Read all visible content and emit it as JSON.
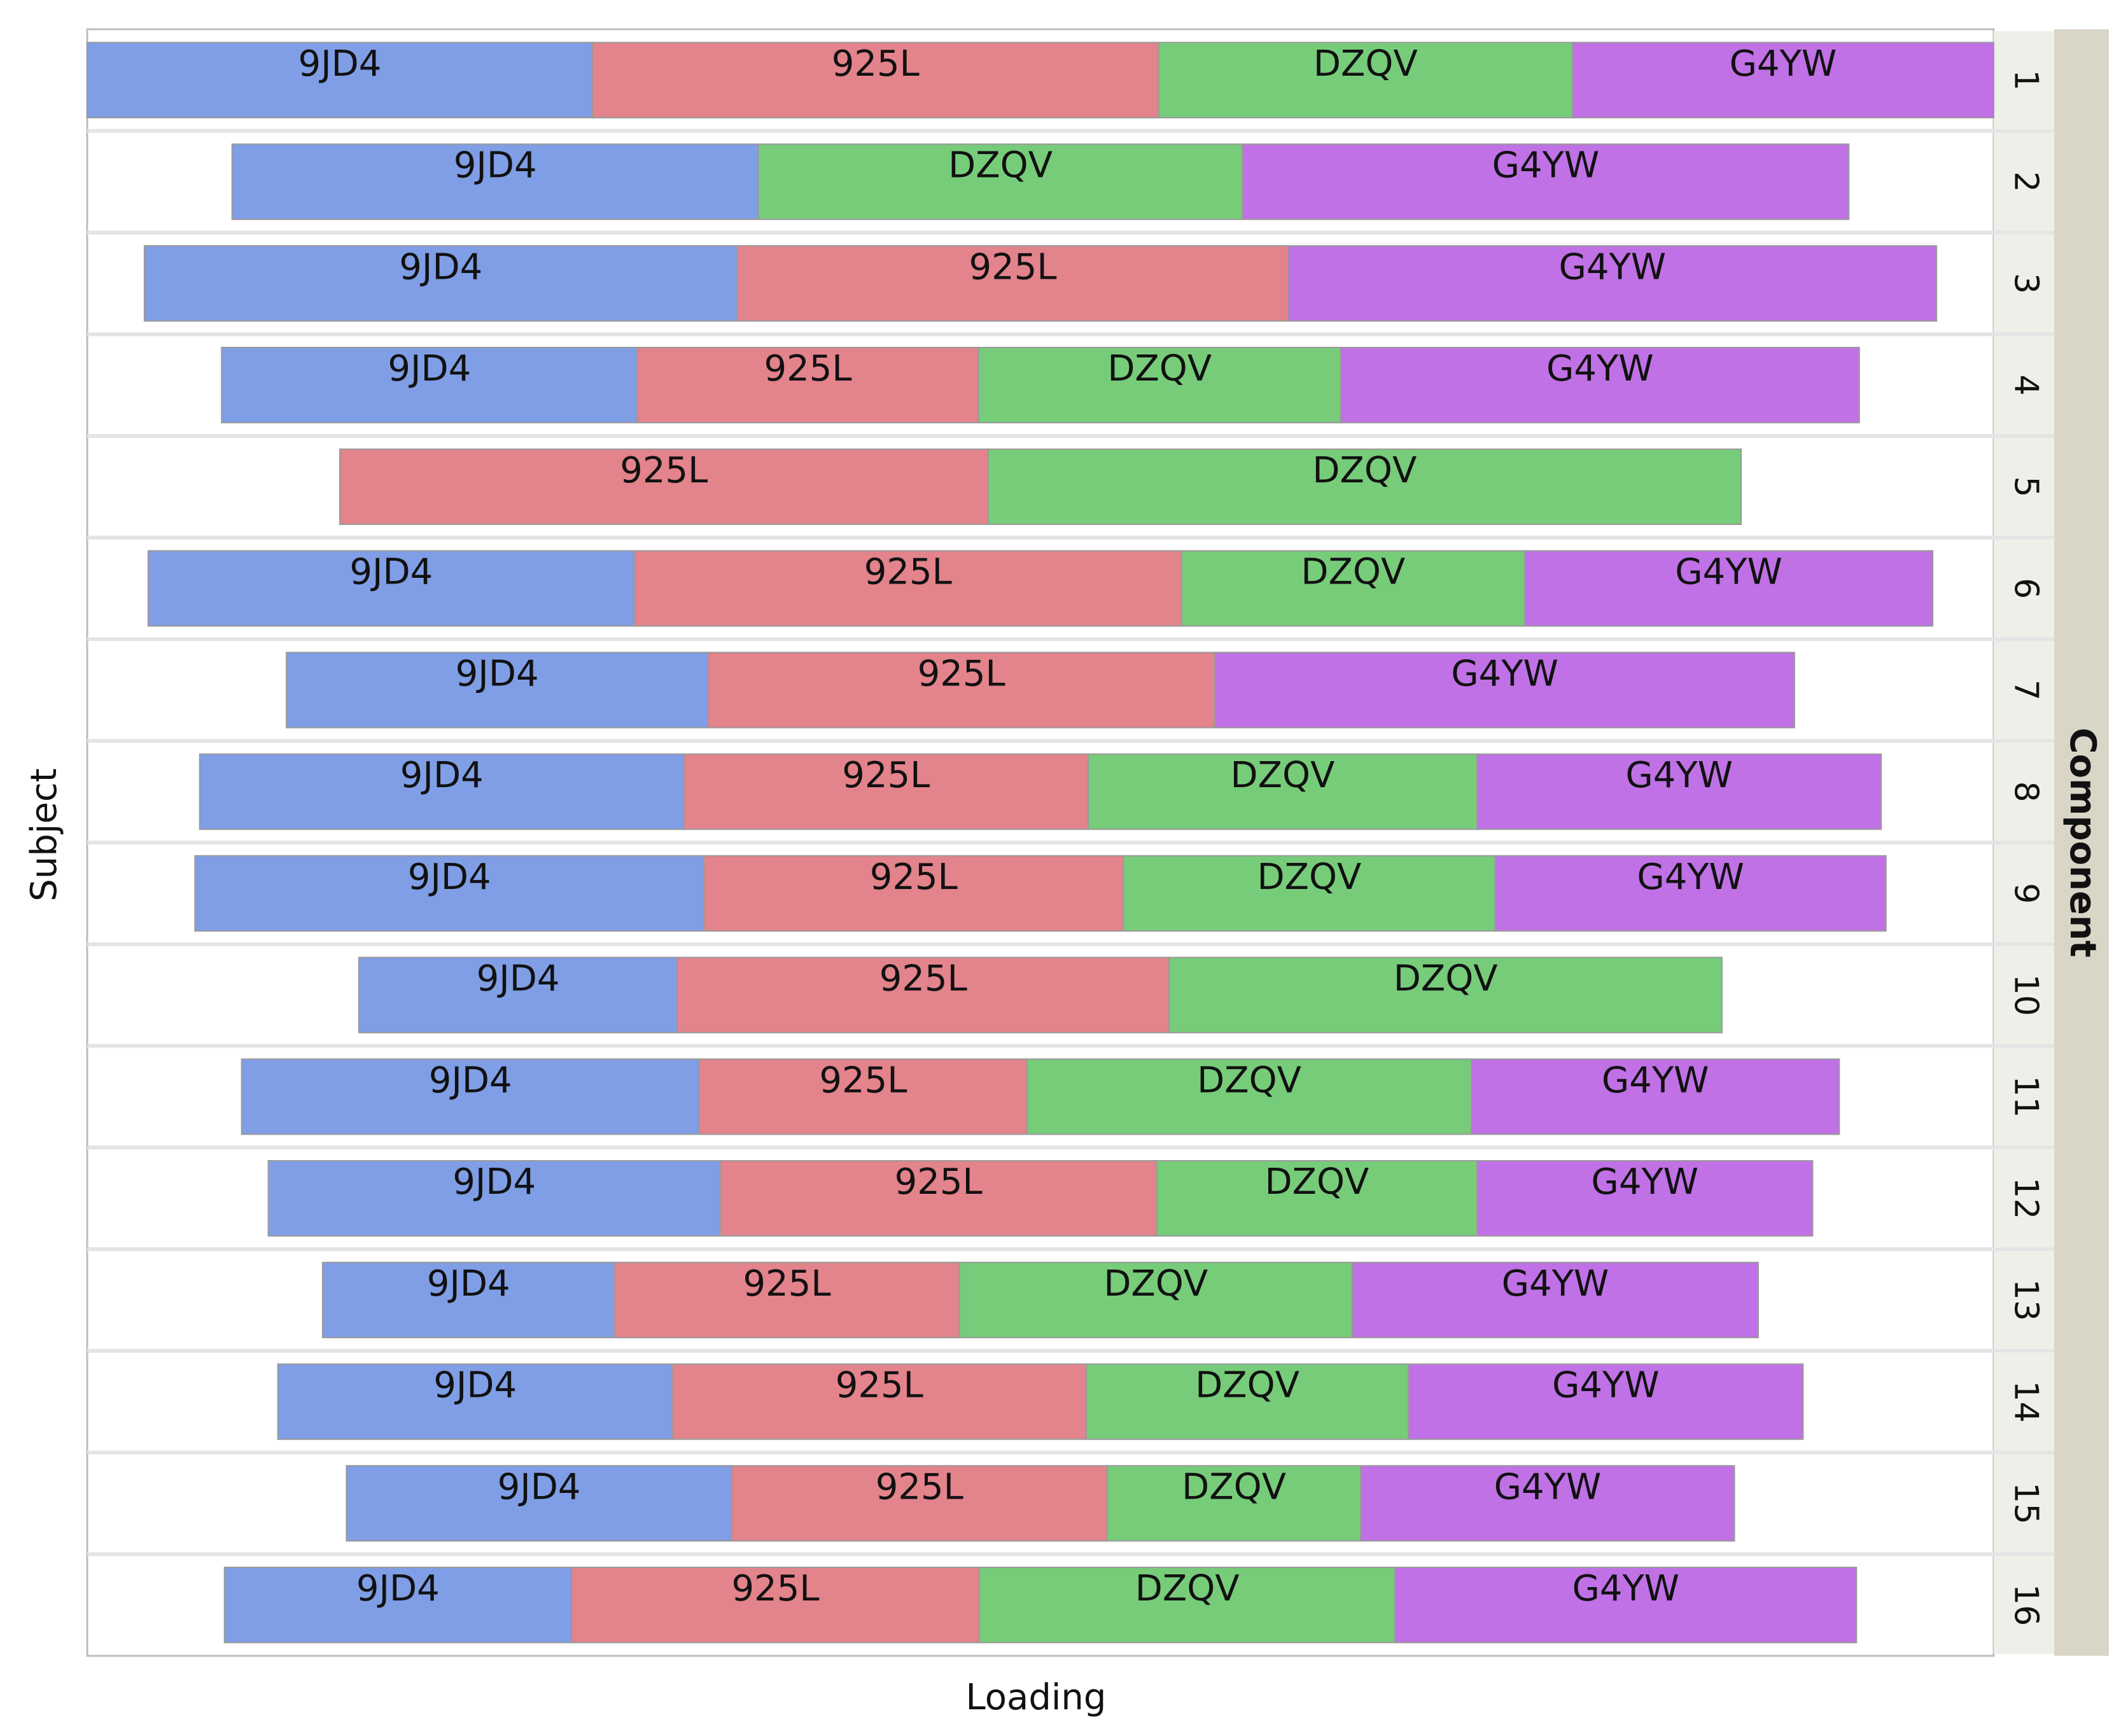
{
  "chart_data": {
    "type": "bar",
    "orientation": "horizontal",
    "stacked": true,
    "centered": true,
    "xlabel": "Loading",
    "ylabel": "Subject",
    "facet_label": "Component",
    "segment_order": [
      "9JD4",
      "925L",
      "DZQV",
      "G4YW"
    ],
    "colors": {
      "9JD4": "#7f9ee6",
      "925L": "#e3838b",
      "DZQV": "#77cc7a",
      "G4YW": "#c071e6"
    },
    "grid": false,
    "legend": "none",
    "rows": [
      {
        "id": "1",
        "values": {
          "9JD4": 0.265,
          "925L": 0.297,
          "DZQV": 0.217,
          "G4YW": 0.221
        }
      },
      {
        "id": "2",
        "values": {
          "9JD4": 0.276,
          "DZQV": 0.254,
          "G4YW": 0.318
        }
      },
      {
        "id": "3",
        "values": {
          "9JD4": 0.311,
          "925L": 0.289,
          "G4YW": 0.34
        }
      },
      {
        "id": "4",
        "values": {
          "9JD4": 0.218,
          "925L": 0.179,
          "DZQV": 0.19,
          "G4YW": 0.272
        }
      },
      {
        "id": "5",
        "values": {
          "925L": 0.34,
          "DZQV": 0.395
        }
      },
      {
        "id": "6",
        "values": {
          "9JD4": 0.255,
          "925L": 0.287,
          "DZQV": 0.18,
          "G4YW": 0.214
        }
      },
      {
        "id": "7",
        "values": {
          "9JD4": 0.221,
          "925L": 0.266,
          "G4YW": 0.304
        }
      },
      {
        "id": "8",
        "values": {
          "9JD4": 0.254,
          "925L": 0.212,
          "DZQV": 0.204,
          "G4YW": 0.212
        }
      },
      {
        "id": "9",
        "values": {
          "9JD4": 0.267,
          "925L": 0.22,
          "DZQV": 0.195,
          "G4YW": 0.205
        }
      },
      {
        "id": "10",
        "values": {
          "9JD4": 0.167,
          "925L": 0.258,
          "DZQV": 0.29
        }
      },
      {
        "id": "11",
        "values": {
          "9JD4": 0.24,
          "925L": 0.172,
          "DZQV": 0.233,
          "G4YW": 0.193
        }
      },
      {
        "id": "12",
        "values": {
          "9JD4": 0.237,
          "925L": 0.229,
          "DZQV": 0.168,
          "G4YW": 0.176
        }
      },
      {
        "id": "13",
        "values": {
          "9JD4": 0.153,
          "925L": 0.181,
          "DZQV": 0.206,
          "G4YW": 0.213
        }
      },
      {
        "id": "14",
        "values": {
          "9JD4": 0.207,
          "925L": 0.217,
          "DZQV": 0.169,
          "G4YW": 0.207
        }
      },
      {
        "id": "15",
        "values": {
          "9JD4": 0.202,
          "925L": 0.197,
          "DZQV": 0.133,
          "G4YW": 0.196
        }
      },
      {
        "id": "16",
        "values": {
          "9JD4": 0.182,
          "925L": 0.214,
          "DZQV": 0.218,
          "G4YW": 0.242
        }
      }
    ]
  }
}
